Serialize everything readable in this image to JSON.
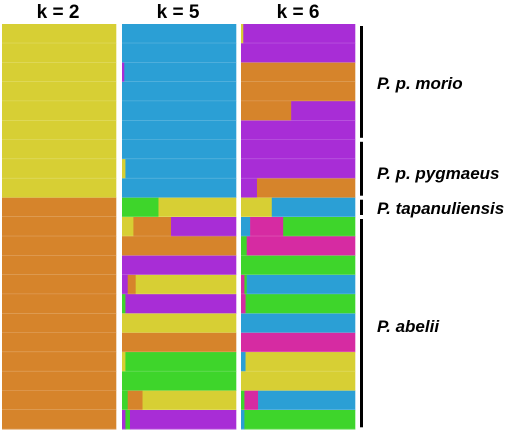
{
  "palette": {
    "Y": "#d7cf34",
    "O": "#d6842b",
    "B": "#2b9fd5",
    "P": "#a82dd6",
    "G": "#3ed52b",
    "M": "#d62ba2"
  },
  "panels": [
    {
      "title": "k = 2",
      "rows": [
        [
          [
            "Y",
            1
          ]
        ],
        [
          [
            "Y",
            1
          ]
        ],
        [
          [
            "Y",
            1
          ]
        ],
        [
          [
            "Y",
            1
          ]
        ],
        [
          [
            "Y",
            1
          ]
        ],
        [
          [
            "Y",
            1
          ]
        ],
        [
          [
            "Y",
            1
          ]
        ],
        [
          [
            "Y",
            1
          ]
        ],
        [
          [
            "Y",
            1
          ]
        ],
        [
          [
            "O",
            1
          ]
        ],
        [
          [
            "O",
            1
          ]
        ],
        [
          [
            "O",
            1
          ]
        ],
        [
          [
            "O",
            1
          ]
        ],
        [
          [
            "O",
            1
          ]
        ],
        [
          [
            "O",
            1
          ]
        ],
        [
          [
            "O",
            1
          ]
        ],
        [
          [
            "O",
            1
          ]
        ],
        [
          [
            "O",
            1
          ]
        ],
        [
          [
            "O",
            1
          ]
        ],
        [
          [
            "O",
            1
          ]
        ],
        [
          [
            "O",
            1
          ]
        ]
      ]
    },
    {
      "title": "k = 5",
      "rows": [
        [
          [
            "B",
            1
          ]
        ],
        [
          [
            "B",
            1
          ]
        ],
        [
          [
            "P",
            0.02
          ],
          [
            "B",
            0.98
          ]
        ],
        [
          [
            "B",
            1
          ]
        ],
        [
          [
            "B",
            1
          ]
        ],
        [
          [
            "B",
            1
          ]
        ],
        [
          [
            "B",
            1
          ]
        ],
        [
          [
            "Y",
            0.03
          ],
          [
            "B",
            0.97
          ]
        ],
        [
          [
            "B",
            1
          ]
        ],
        [
          [
            "G",
            0.32
          ],
          [
            "Y",
            0.68
          ]
        ],
        [
          [
            "Y",
            0.1
          ],
          [
            "O",
            0.33
          ],
          [
            "P",
            0.57
          ]
        ],
        [
          [
            "O",
            1
          ]
        ],
        [
          [
            "P",
            1
          ]
        ],
        [
          [
            "P",
            0.05
          ],
          [
            "O",
            0.07
          ],
          [
            "Y",
            0.88
          ]
        ],
        [
          [
            "G",
            0.03
          ],
          [
            "P",
            0.97
          ]
        ],
        [
          [
            "Y",
            1
          ]
        ],
        [
          [
            "O",
            1
          ]
        ],
        [
          [
            "Y",
            0.03
          ],
          [
            "G",
            0.97
          ]
        ],
        [
          [
            "G",
            1
          ]
        ],
        [
          [
            "G",
            0.05
          ],
          [
            "O",
            0.13
          ],
          [
            "Y",
            0.82
          ]
        ],
        [
          [
            "P",
            0.03
          ],
          [
            "G",
            0.04
          ],
          [
            "P",
            0.93
          ]
        ]
      ]
    },
    {
      "title": "k = 6",
      "rows": [
        [
          [
            "Y",
            0.02
          ],
          [
            "P",
            0.98
          ]
        ],
        [
          [
            "P",
            1
          ]
        ],
        [
          [
            "O",
            1
          ]
        ],
        [
          [
            "O",
            1
          ]
        ],
        [
          [
            "O",
            0.44
          ],
          [
            "P",
            0.56
          ]
        ],
        [
          [
            "P",
            1
          ]
        ],
        [
          [
            "P",
            1
          ]
        ],
        [
          [
            "P",
            1
          ]
        ],
        [
          [
            "P",
            0.14
          ],
          [
            "O",
            0.86
          ]
        ],
        [
          [
            "Y",
            0.27
          ],
          [
            "B",
            0.73
          ]
        ],
        [
          [
            "B",
            0.08
          ],
          [
            "M",
            0.29
          ],
          [
            "G",
            0.63
          ]
        ],
        [
          [
            "G",
            0.05
          ],
          [
            "M",
            0.95
          ]
        ],
        [
          [
            "G",
            1
          ]
        ],
        [
          [
            "M",
            0.03
          ],
          [
            "G",
            0.02
          ],
          [
            "B",
            0.95
          ]
        ],
        [
          [
            "M",
            0.04
          ],
          [
            "G",
            0.96
          ]
        ],
        [
          [
            "B",
            1
          ]
        ],
        [
          [
            "M",
            1
          ]
        ],
        [
          [
            "B",
            0.04
          ],
          [
            "Y",
            0.96
          ]
        ],
        [
          [
            "Y",
            1
          ]
        ],
        [
          [
            "G",
            0.03
          ],
          [
            "M",
            0.12
          ],
          [
            "B",
            0.85
          ]
        ],
        [
          [
            "B",
            0.03
          ],
          [
            "G",
            0.97
          ]
        ]
      ]
    }
  ],
  "groups": [
    {
      "label": "P. p. morio",
      "startRow": 0,
      "endRow": 5
    },
    {
      "label": "P. p. pygmaeus",
      "startRow": 6,
      "endRow": 8
    },
    {
      "label": "P. tapanuliensis",
      "startRow": 9,
      "endRow": 9
    },
    {
      "label": "P. abelii",
      "startRow": 10,
      "endRow": 20
    }
  ]
}
